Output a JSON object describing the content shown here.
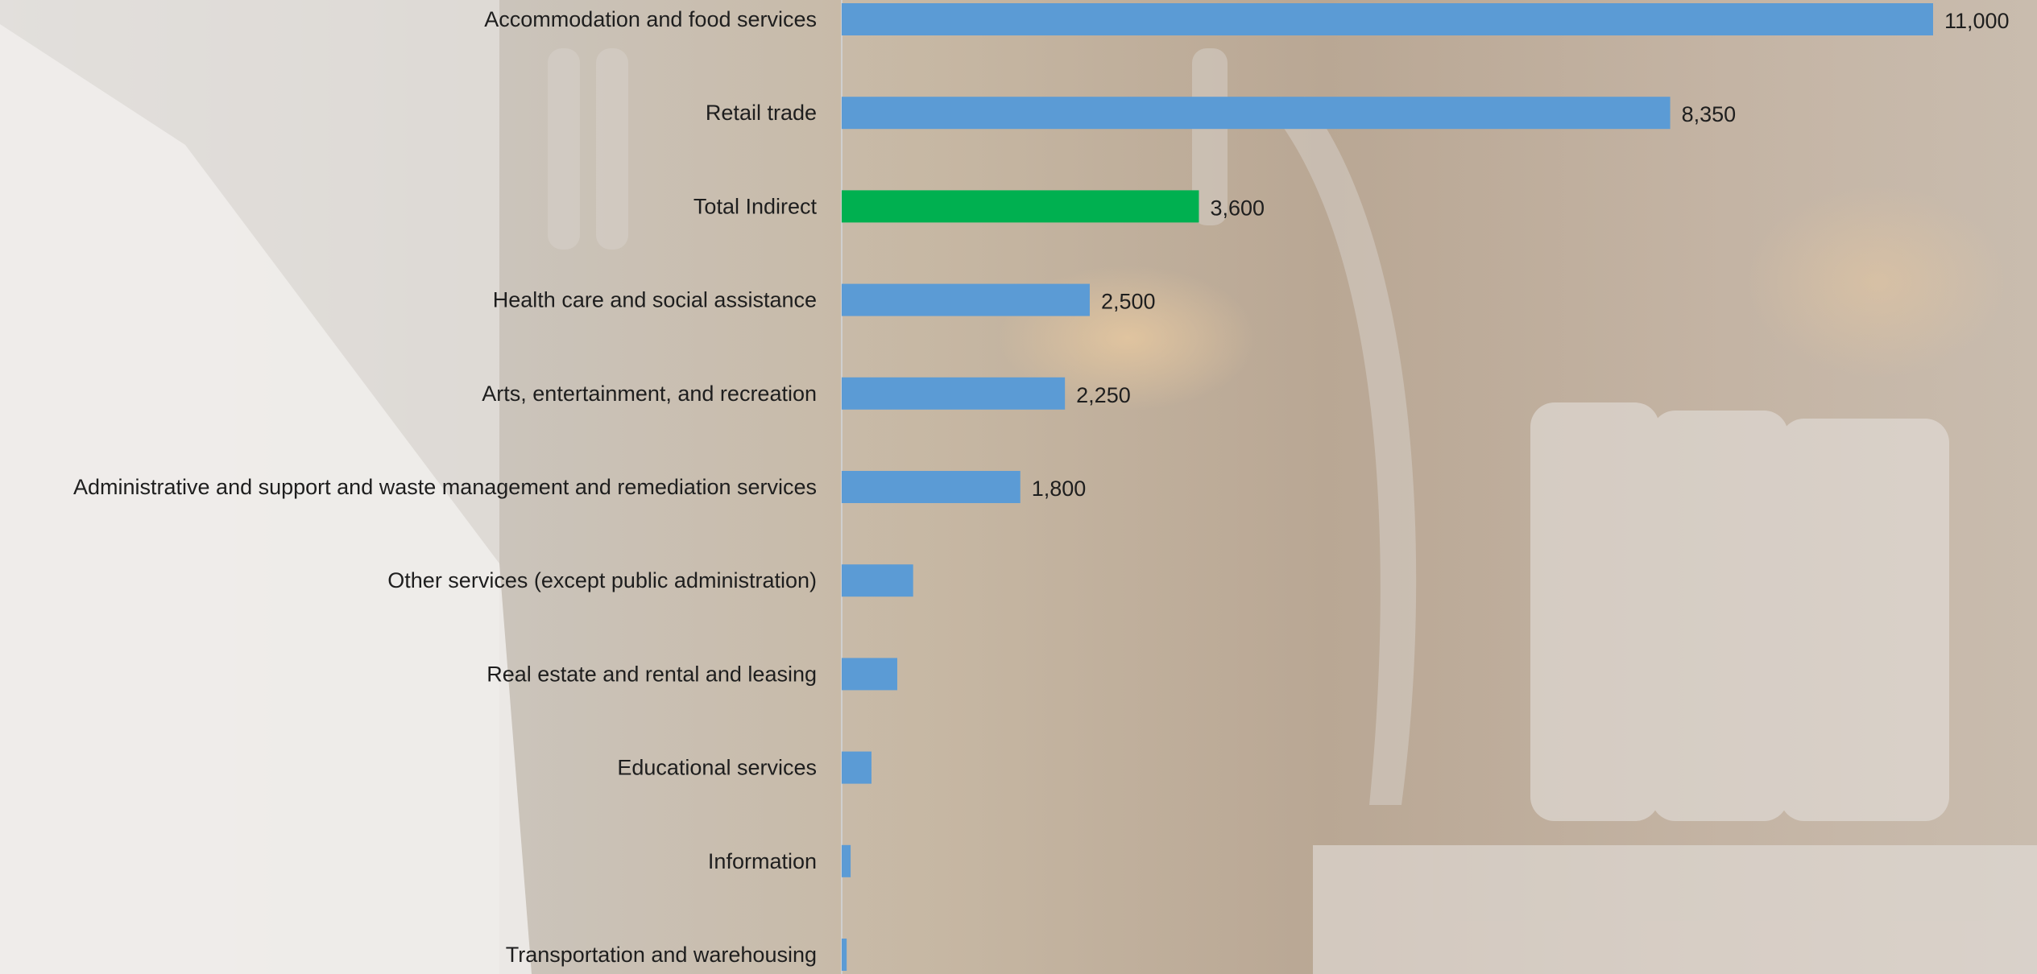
{
  "chart_data": {
    "type": "bar",
    "orientation": "horizontal",
    "categories": [
      "Accommodation and food services",
      "Retail trade",
      "Total Indirect",
      "Health care and social assistance",
      "Arts, entertainment, and recreation",
      "Administrative and support and waste management and remediation services",
      "Other services (except public administration)",
      "Real estate and rental and leasing",
      "Educational services",
      "Information",
      "Transportation and warehousing"
    ],
    "values": [
      11000,
      8350,
      3600,
      2500,
      2250,
      1800,
      720,
      560,
      300,
      90,
      50
    ],
    "data_labels": [
      "11,000",
      "8,350",
      "3,600",
      "2,500",
      "2,250",
      "1,800",
      "",
      "",
      "",
      "",
      ""
    ],
    "highlight_category": "Total Indirect",
    "colors": {
      "default_bar": "#5b9bd5",
      "highlight_bar": "#00b050",
      "axis_line": "#cfcfcf"
    },
    "xlim": [
      0,
      11000
    ],
    "title": "",
    "xlabel": "",
    "ylabel": "",
    "grid": false,
    "legend": "none",
    "background": "photo of bartender pouring beer at taps, washed out"
  }
}
